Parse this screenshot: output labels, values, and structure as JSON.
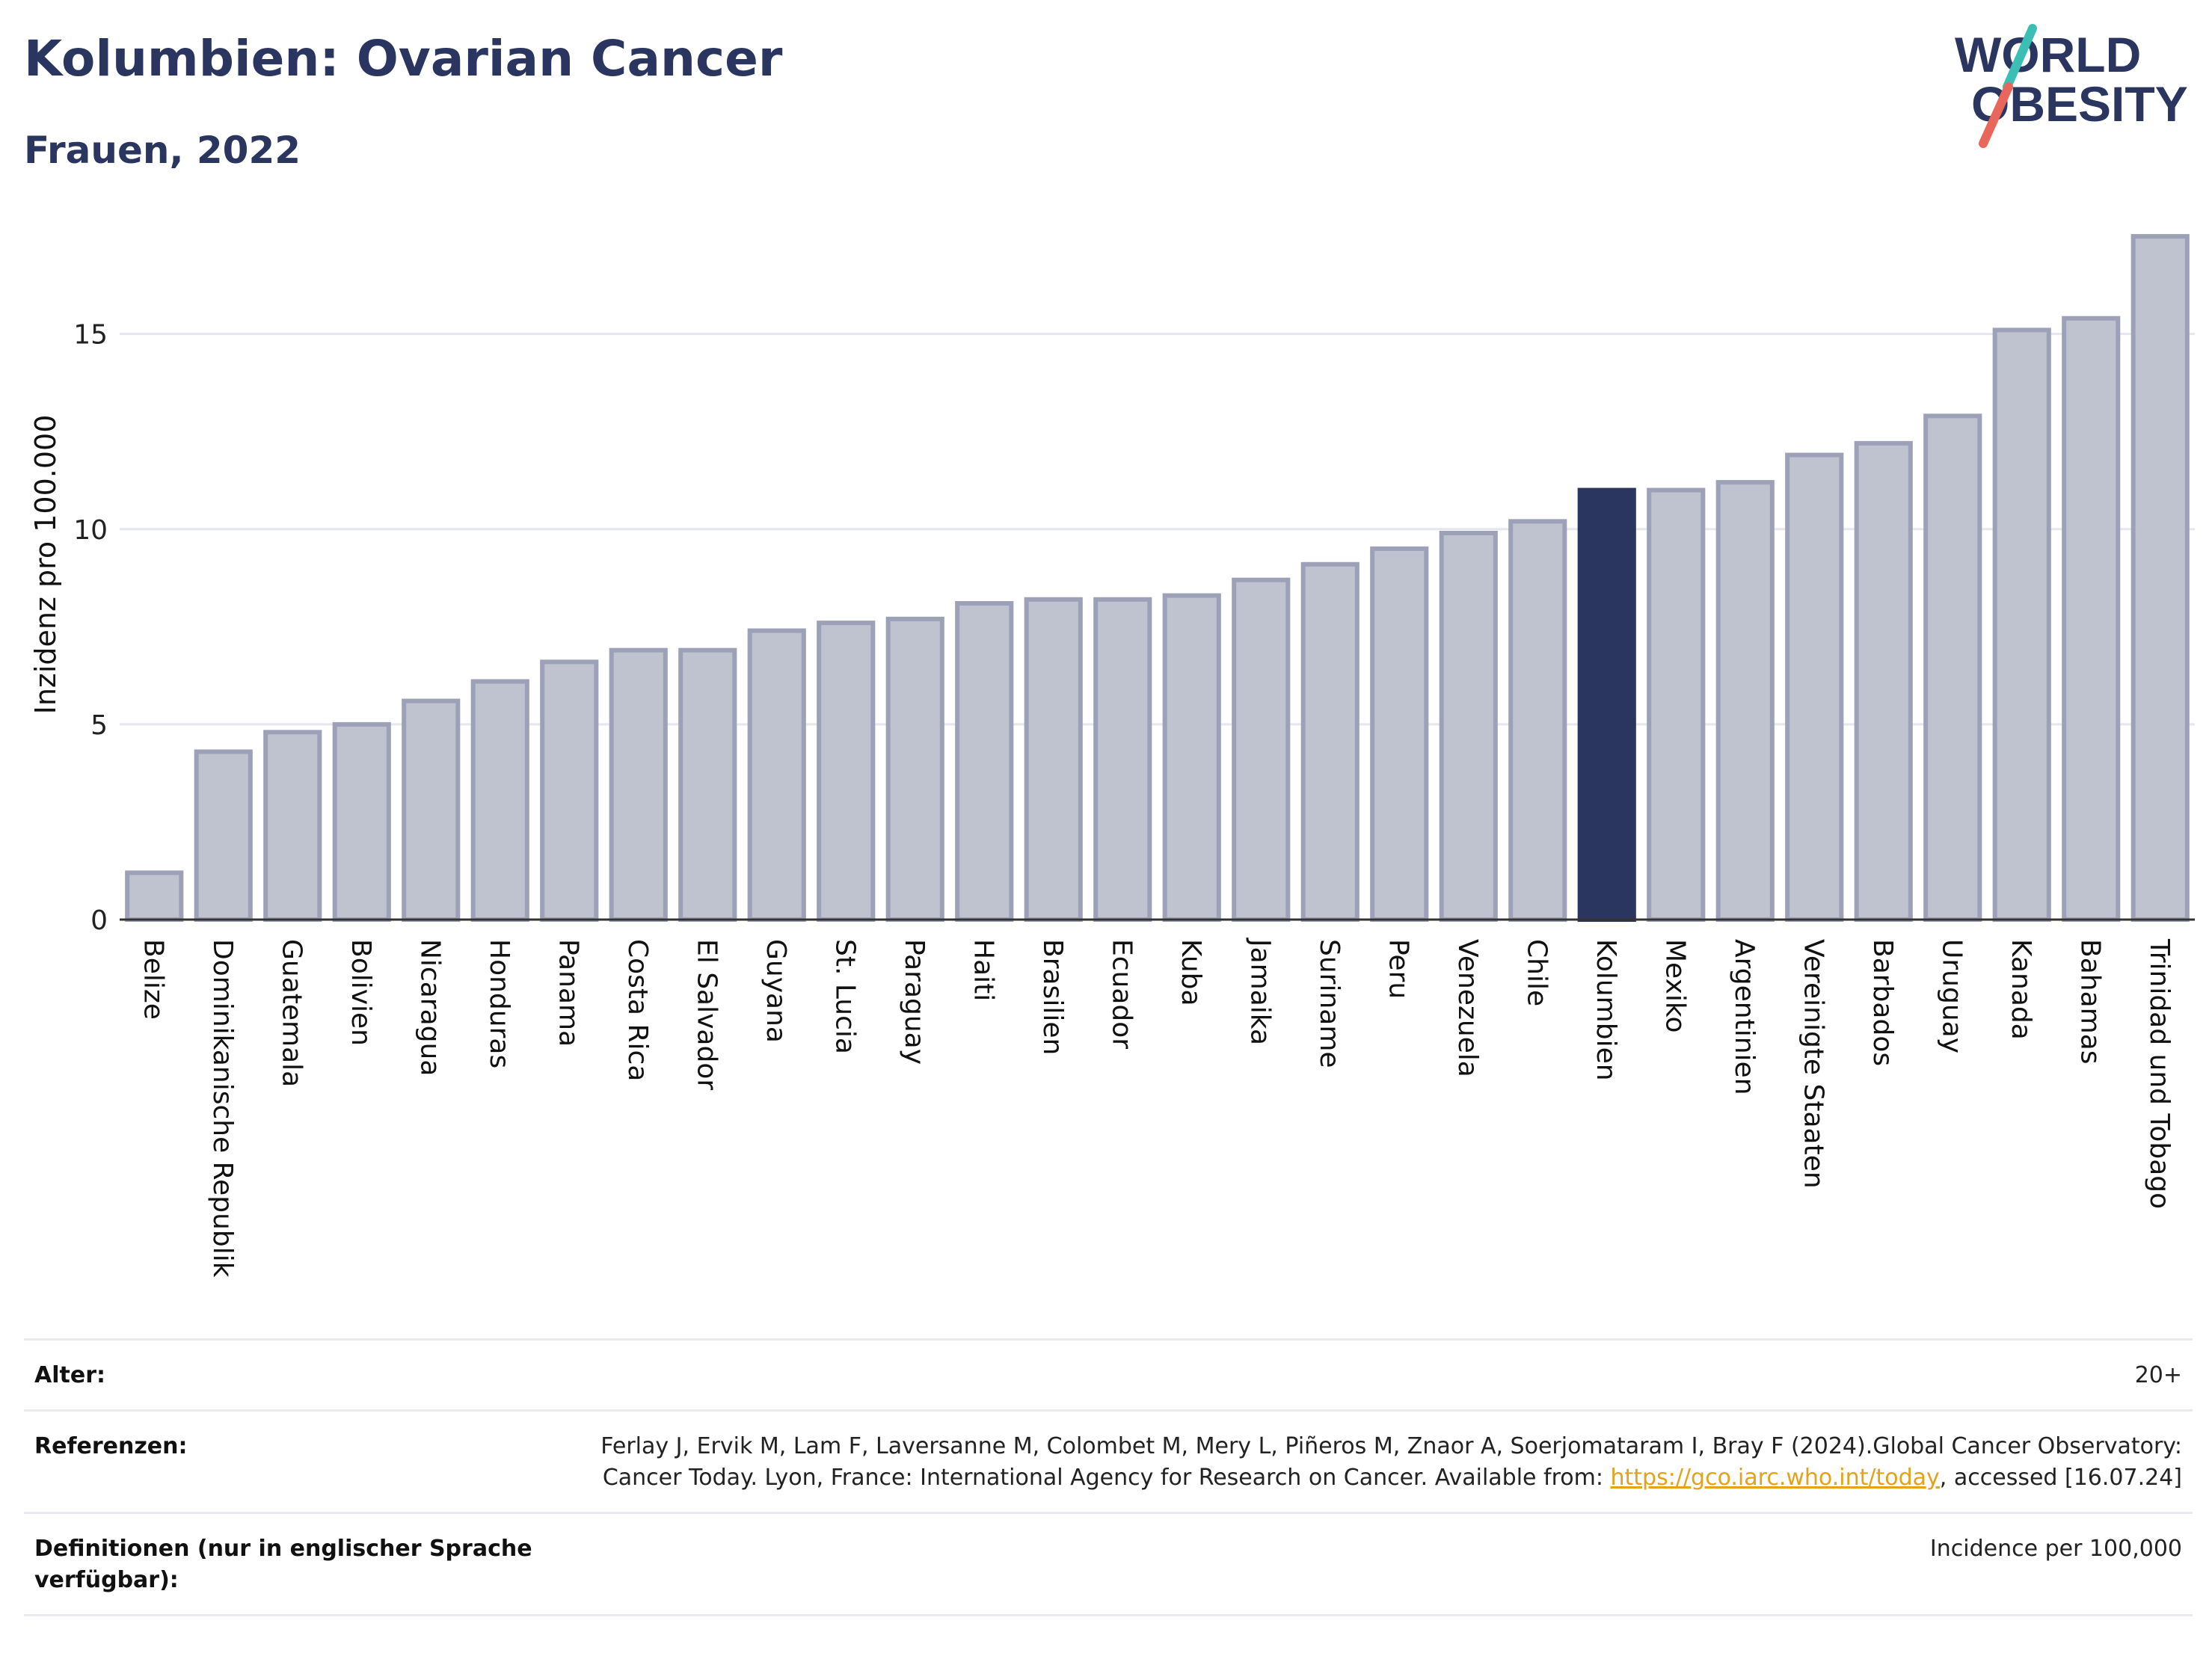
{
  "header": {
    "title": "Kolumbien: Ovarian Cancer",
    "subtitle": "Frauen, 2022"
  },
  "logo": {
    "line1": "WORLD",
    "line2": "OBESITY",
    "colors": {
      "text": "#2a3560",
      "slash_teal": "#3bbfb4",
      "slash_coral": "#e8665a"
    }
  },
  "colors": {
    "bar_default": "#bfc2cf",
    "bar_default_stroke": "#9ca1b8",
    "bar_highlight": "#2a3560",
    "axis": "#333333",
    "grid": "#e6e7ee"
  },
  "chart_data": {
    "type": "bar",
    "ylabel": "Inzidenz pro 100.000",
    "ylim": [
      0,
      18
    ],
    "yticks": [
      0,
      5,
      10,
      15
    ],
    "grid": true,
    "highlight": "Kolumbien",
    "categories": [
      "Belize",
      "Dominikanische Republik",
      "Guatemala",
      "Bolivien",
      "Nicaragua",
      "Honduras",
      "Panama",
      "Costa Rica",
      "El Salvador",
      "Guyana",
      "St. Lucia",
      "Paraguay",
      "Haiti",
      "Brasilien",
      "Ecuador",
      "Kuba",
      "Jamaika",
      "Suriname",
      "Peru",
      "Venezuela",
      "Chile",
      "Kolumbien",
      "Mexiko",
      "Argentinien",
      "Vereinigte Staaten",
      "Barbados",
      "Uruguay",
      "Kanada",
      "Bahamas",
      "Trinidad und Tobago"
    ],
    "values": [
      1.2,
      4.3,
      4.8,
      5.0,
      5.6,
      6.1,
      6.6,
      6.9,
      6.9,
      7.4,
      7.6,
      7.7,
      8.1,
      8.2,
      8.2,
      8.3,
      8.7,
      9.1,
      9.5,
      9.9,
      10.2,
      11.0,
      11.0,
      11.2,
      11.9,
      12.2,
      12.9,
      15.1,
      15.4,
      17.5
    ]
  },
  "info": {
    "age_label": "Alter:",
    "age_value": "20+",
    "references_label": "Referenzen:",
    "references_text_before": "Ferlay J, Ervik M, Lam F, Laversanne M, Colombet M, Mery L, Piñeros M, Znaor A, Soerjomataram I, Bray F (2024).Global Cancer Observatory: Cancer Today. Lyon, France: International Agency for Research on Cancer. Available from: ",
    "references_link": "https://gco.iarc.who.int/today",
    "references_text_after": ", accessed [16.07.24]",
    "definitions_label": "Definitionen (nur in englischer Sprache verfügbar):",
    "definitions_value": "Incidence per 100,000"
  }
}
